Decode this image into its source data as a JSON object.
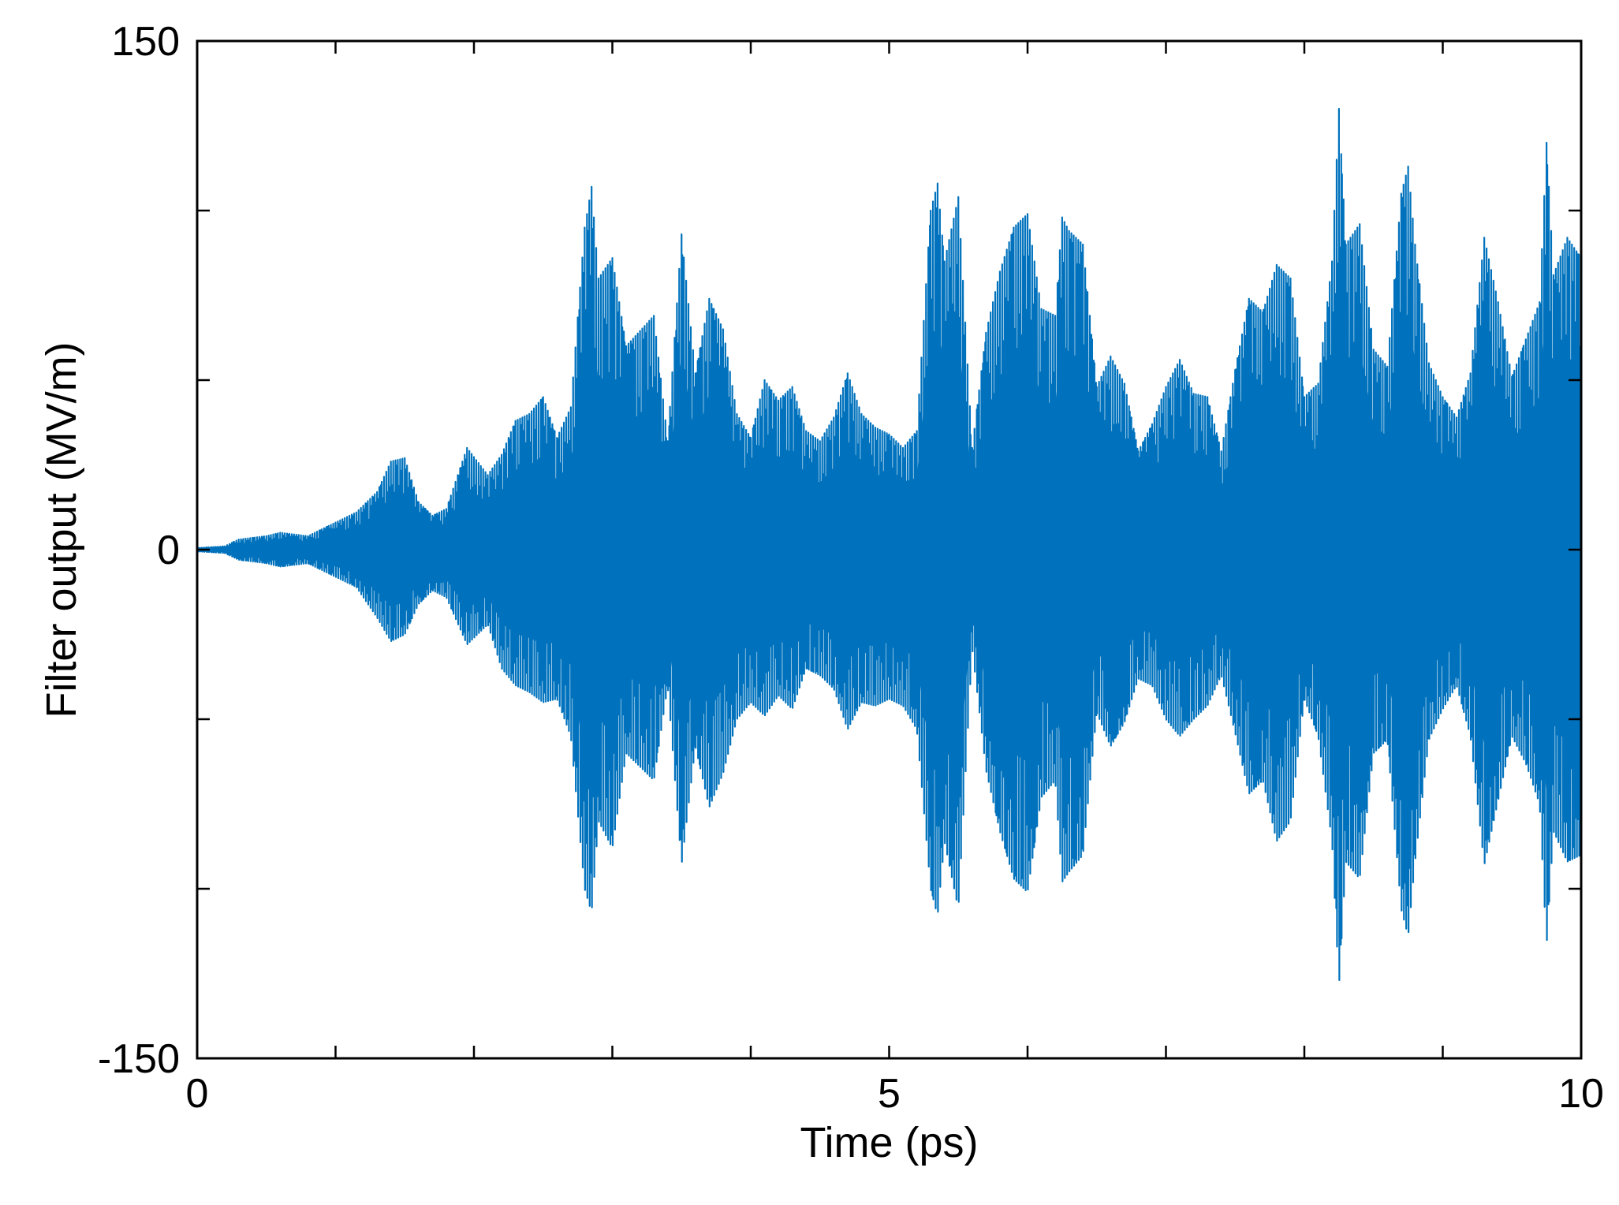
{
  "chart_data": {
    "type": "line",
    "xlabel": "Time (ps)",
    "ylabel": "Filter output (MV/m)",
    "xlim": [
      0,
      10
    ],
    "ylim": [
      -150,
      150
    ],
    "x_ticks": [
      0,
      1,
      2,
      3,
      4,
      5,
      6,
      7,
      8,
      9,
      10
    ],
    "x_tick_labels": [
      {
        "value": 0,
        "label": "0"
      },
      {
        "value": 5,
        "label": "5"
      },
      {
        "value": 10,
        "label": "10"
      }
    ],
    "y_ticks": [
      -150,
      -100,
      -50,
      0,
      50,
      100,
      150
    ],
    "y_tick_labels": [
      {
        "value": 150,
        "label": "150"
      },
      {
        "value": 0,
        "label": "0"
      },
      {
        "value": -150,
        "label": "-150"
      }
    ],
    "grid": false,
    "series": [
      {
        "color": "#0072BD",
        "envelope_upper": [
          [
            0.0,
            0.5
          ],
          [
            0.2,
            1
          ],
          [
            0.3,
            3
          ],
          [
            0.5,
            4
          ],
          [
            0.6,
            5
          ],
          [
            0.8,
            4
          ],
          [
            0.9,
            6
          ],
          [
            1.0,
            8
          ],
          [
            1.15,
            11
          ],
          [
            1.3,
            17
          ],
          [
            1.4,
            26
          ],
          [
            1.5,
            27
          ],
          [
            1.6,
            14
          ],
          [
            1.7,
            10
          ],
          [
            1.8,
            12
          ],
          [
            1.95,
            30
          ],
          [
            2.1,
            22
          ],
          [
            2.2,
            28
          ],
          [
            2.3,
            38
          ],
          [
            2.4,
            40
          ],
          [
            2.5,
            45
          ],
          [
            2.6,
            33
          ],
          [
            2.7,
            42
          ],
          [
            2.8,
            95
          ],
          [
            2.85,
            107
          ],
          [
            2.9,
            80
          ],
          [
            3.0,
            86
          ],
          [
            3.1,
            60
          ],
          [
            3.3,
            69
          ],
          [
            3.4,
            32
          ],
          [
            3.5,
            93
          ],
          [
            3.6,
            52
          ],
          [
            3.7,
            74
          ],
          [
            3.8,
            65
          ],
          [
            3.9,
            40
          ],
          [
            4.0,
            33
          ],
          [
            4.1,
            50
          ],
          [
            4.2,
            44
          ],
          [
            4.3,
            48
          ],
          [
            4.4,
            35
          ],
          [
            4.5,
            32
          ],
          [
            4.6,
            39
          ],
          [
            4.7,
            52
          ],
          [
            4.8,
            40
          ],
          [
            4.9,
            36
          ],
          [
            5.0,
            34
          ],
          [
            5.1,
            30
          ],
          [
            5.2,
            35
          ],
          [
            5.3,
            100
          ],
          [
            5.35,
            108
          ],
          [
            5.4,
            85
          ],
          [
            5.5,
            104
          ],
          [
            5.6,
            30
          ],
          [
            5.7,
            64
          ],
          [
            5.8,
            82
          ],
          [
            5.9,
            95
          ],
          [
            6.0,
            99
          ],
          [
            6.1,
            71
          ],
          [
            6.2,
            69
          ],
          [
            6.25,
            98
          ],
          [
            6.3,
            94
          ],
          [
            6.4,
            90
          ],
          [
            6.5,
            48
          ],
          [
            6.6,
            57
          ],
          [
            6.7,
            49
          ],
          [
            6.8,
            29
          ],
          [
            6.9,
            37
          ],
          [
            7.0,
            48
          ],
          [
            7.1,
            56
          ],
          [
            7.2,
            46
          ],
          [
            7.3,
            45
          ],
          [
            7.4,
            29
          ],
          [
            7.5,
            53
          ],
          [
            7.6,
            74
          ],
          [
            7.7,
            70
          ],
          [
            7.8,
            84
          ],
          [
            7.9,
            80
          ],
          [
            8.0,
            45
          ],
          [
            8.1,
            49
          ],
          [
            8.2,
            85
          ],
          [
            8.25,
            130
          ],
          [
            8.3,
            90
          ],
          [
            8.4,
            96
          ],
          [
            8.5,
            59
          ],
          [
            8.6,
            54
          ],
          [
            8.7,
            105
          ],
          [
            8.75,
            113
          ],
          [
            8.8,
            90
          ],
          [
            8.9,
            55
          ],
          [
            9.0,
            45
          ],
          [
            9.1,
            39
          ],
          [
            9.2,
            52
          ],
          [
            9.3,
            92
          ],
          [
            9.4,
            73
          ],
          [
            9.5,
            51
          ],
          [
            9.6,
            62
          ],
          [
            9.7,
            73
          ],
          [
            9.75,
            120
          ],
          [
            9.8,
            81
          ],
          [
            9.9,
            92
          ],
          [
            10.0,
            86
          ]
        ],
        "envelope_lower": [
          [
            0.0,
            -0.5
          ],
          [
            0.2,
            -1
          ],
          [
            0.3,
            -3
          ],
          [
            0.5,
            -4
          ],
          [
            0.6,
            -5
          ],
          [
            0.8,
            -4
          ],
          [
            0.9,
            -6
          ],
          [
            1.0,
            -8
          ],
          [
            1.15,
            -11
          ],
          [
            1.3,
            -20
          ],
          [
            1.4,
            -27
          ],
          [
            1.5,
            -25
          ],
          [
            1.6,
            -16
          ],
          [
            1.7,
            -12
          ],
          [
            1.8,
            -14
          ],
          [
            1.95,
            -28
          ],
          [
            2.1,
            -22
          ],
          [
            2.2,
            -35
          ],
          [
            2.3,
            -40
          ],
          [
            2.4,
            -42
          ],
          [
            2.5,
            -45
          ],
          [
            2.6,
            -44
          ],
          [
            2.7,
            -55
          ],
          [
            2.8,
            -100
          ],
          [
            2.85,
            -107
          ],
          [
            2.9,
            -80
          ],
          [
            3.0,
            -88
          ],
          [
            3.1,
            -60
          ],
          [
            3.3,
            -68
          ],
          [
            3.4,
            -40
          ],
          [
            3.5,
            -93
          ],
          [
            3.6,
            -58
          ],
          [
            3.7,
            -76
          ],
          [
            3.8,
            -66
          ],
          [
            3.9,
            -50
          ],
          [
            4.0,
            -45
          ],
          [
            4.1,
            -49
          ],
          [
            4.2,
            -43
          ],
          [
            4.3,
            -47
          ],
          [
            4.4,
            -35
          ],
          [
            4.5,
            -37
          ],
          [
            4.6,
            -41
          ],
          [
            4.7,
            -53
          ],
          [
            4.8,
            -45
          ],
          [
            4.9,
            -46
          ],
          [
            5.0,
            -44
          ],
          [
            5.1,
            -46
          ],
          [
            5.2,
            -53
          ],
          [
            5.3,
            -100
          ],
          [
            5.35,
            -108
          ],
          [
            5.4,
            -86
          ],
          [
            5.5,
            -106
          ],
          [
            5.6,
            -29
          ],
          [
            5.7,
            -65
          ],
          [
            5.8,
            -83
          ],
          [
            5.9,
            -97
          ],
          [
            6.0,
            -101
          ],
          [
            6.1,
            -73
          ],
          [
            6.2,
            -68
          ],
          [
            6.25,
            -98
          ],
          [
            6.3,
            -95
          ],
          [
            6.4,
            -90
          ],
          [
            6.5,
            -48
          ],
          [
            6.6,
            -58
          ],
          [
            6.7,
            -51
          ],
          [
            6.8,
            -38
          ],
          [
            6.9,
            -40
          ],
          [
            7.0,
            -50
          ],
          [
            7.1,
            -55
          ],
          [
            7.2,
            -50
          ],
          [
            7.3,
            -46
          ],
          [
            7.4,
            -37
          ],
          [
            7.5,
            -54
          ],
          [
            7.6,
            -72
          ],
          [
            7.7,
            -68
          ],
          [
            7.8,
            -86
          ],
          [
            7.9,
            -80
          ],
          [
            8.0,
            -44
          ],
          [
            8.1,
            -55
          ],
          [
            8.2,
            -86
          ],
          [
            8.25,
            -129
          ],
          [
            8.3,
            -92
          ],
          [
            8.4,
            -97
          ],
          [
            8.5,
            -60
          ],
          [
            8.6,
            -56
          ],
          [
            8.7,
            -106
          ],
          [
            8.75,
            -114
          ],
          [
            8.8,
            -92
          ],
          [
            8.9,
            -56
          ],
          [
            9.0,
            -47
          ],
          [
            9.1,
            -40
          ],
          [
            9.2,
            -55
          ],
          [
            9.3,
            -93
          ],
          [
            9.4,
            -74
          ],
          [
            9.5,
            -55
          ],
          [
            9.6,
            -63
          ],
          [
            9.7,
            -75
          ],
          [
            9.75,
            -117
          ],
          [
            9.8,
            -83
          ],
          [
            9.9,
            -92
          ],
          [
            10.0,
            -90
          ]
        ]
      }
    ]
  }
}
